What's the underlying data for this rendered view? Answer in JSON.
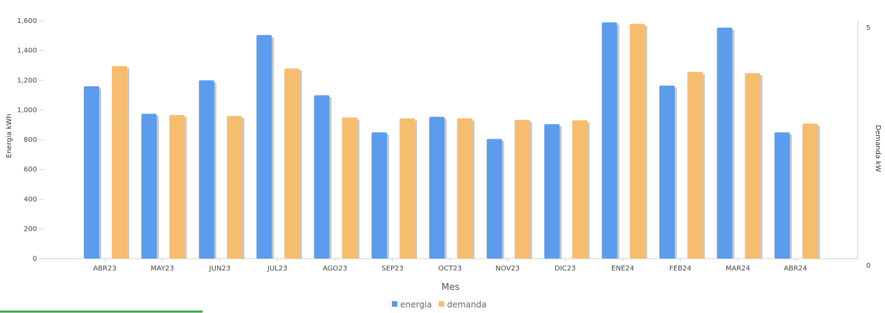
{
  "chart_data": {
    "type": "bar",
    "categories": [
      "ABR23",
      "MAY23",
      "JUN23",
      "JUL23",
      "AGO23",
      "SEP23",
      "OCT23",
      "NOV23",
      "DIC23",
      "ENE24",
      "FEB24",
      "MAR24",
      "ABR24"
    ],
    "series": [
      {
        "name": "energia",
        "axis": "left",
        "color": "#5b9cec",
        "values": [
          1160,
          975,
          1200,
          1505,
          1100,
          850,
          955,
          805,
          905,
          1590,
          1165,
          1555,
          850
        ]
      },
      {
        "name": "demanda",
        "axis": "right",
        "color": "#f7bd6e",
        "values": [
          4.05,
          3.02,
          3.0,
          4.0,
          2.97,
          2.95,
          2.95,
          2.92,
          2.91,
          4.94,
          3.93,
          3.9,
          2.84
        ]
      }
    ],
    "xlabel": "Mes",
    "ylabel": "Energia kWh",
    "y2label": "Demanda kW",
    "ylim": [
      0,
      1600
    ],
    "y2lim": [
      0,
      5
    ],
    "yticks": [
      "0",
      "200",
      "400",
      "600",
      "800",
      "1,000",
      "1,200",
      "1,400",
      "1,600"
    ],
    "y2ticks": [
      "0",
      "5"
    ],
    "legend_position": "bottom",
    "grid": false
  },
  "colors": {
    "energia": "#5b9cec",
    "demanda": "#f7bd6e",
    "accent_line": "#3aa64a"
  }
}
